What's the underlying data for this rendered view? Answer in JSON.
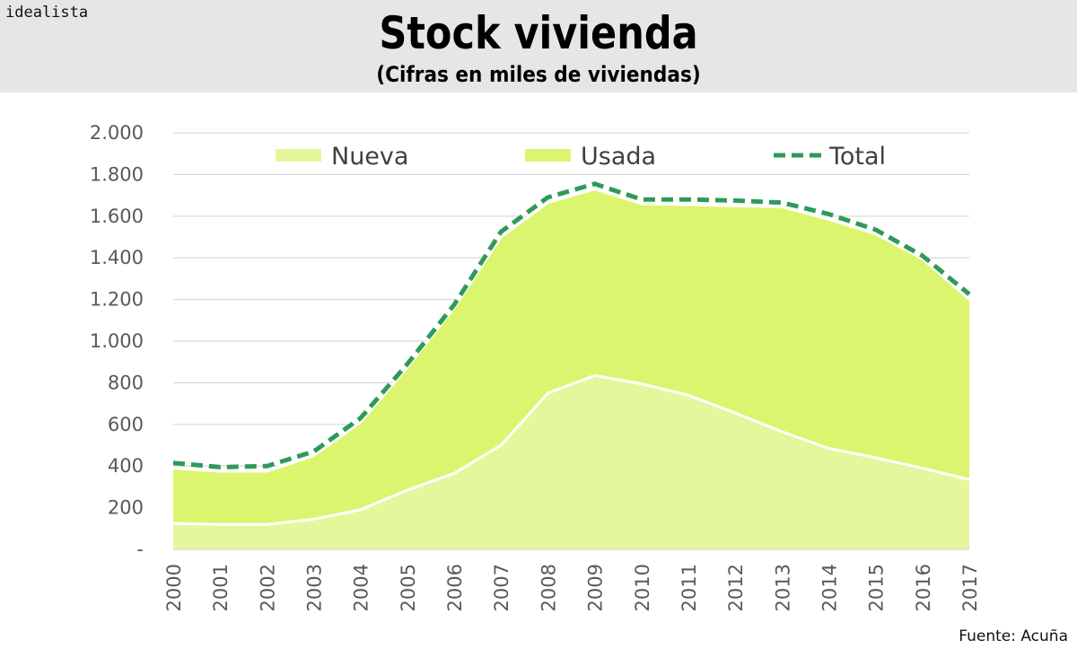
{
  "header": {
    "brand": "idealista",
    "title": "Stock vivienda",
    "subtitle": "(Cifras en miles de viviendas)"
  },
  "footer": {
    "source": "Fuente: Acuña"
  },
  "colors": {
    "nueva": "#e4f79c",
    "usada": "#dcf56e",
    "total": "#2e9a59",
    "grid": "#d9d9d9",
    "header_bg": "#e6e6e6"
  },
  "chart_data": {
    "type": "area",
    "title": "Stock vivienda",
    "subtitle": "(Cifras en miles de viviendas)",
    "x": [
      2000,
      2001,
      2002,
      2003,
      2004,
      2005,
      2006,
      2007,
      2008,
      2009,
      2010,
      2011,
      2012,
      2013,
      2014,
      2015,
      2016,
      2017
    ],
    "series": [
      {
        "name": "Nueva",
        "kind": "area",
        "values": [
          125,
          120,
          120,
          145,
          190,
          285,
          365,
          500,
          750,
          835,
          795,
          740,
          655,
          565,
          485,
          440,
          390,
          335
        ]
      },
      {
        "name": "Usada",
        "kind": "stacked-area",
        "values": [
          265,
          255,
          255,
          305,
          420,
          590,
          795,
          1000,
          915,
          895,
          865,
          915,
          995,
          1080,
          1100,
          1075,
          1005,
          865
        ]
      },
      {
        "name": "Total",
        "kind": "dashed-line",
        "values": [
          415,
          395,
          400,
          470,
          630,
          890,
          1175,
          1525,
          1690,
          1755,
          1680,
          1680,
          1675,
          1665,
          1610,
          1535,
          1410,
          1225
        ]
      }
    ],
    "y_ticks": [
      "-",
      "200",
      "400",
      "600",
      "800",
      "1.000",
      "1.200",
      "1.400",
      "1.600",
      "1.800",
      "2.000"
    ],
    "ylim": [
      0,
      2000
    ],
    "ystep": 200,
    "xlabel": "",
    "ylabel": "",
    "grid": true,
    "legend": {
      "position": "top",
      "entries": [
        "Nueva",
        "Usada",
        "Total"
      ]
    }
  }
}
